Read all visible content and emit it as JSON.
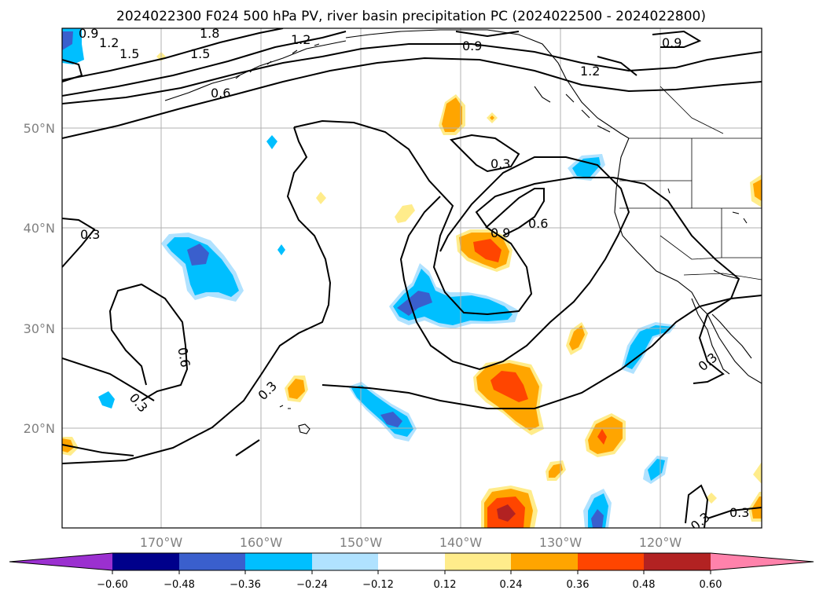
{
  "title": "2024022300 F024 500 hPa PV, river basin precipitation PC (2024022500 - 2024022800)",
  "lon_labels": [
    "170°W",
    "160°W",
    "150°W",
    "140°W",
    "130°W",
    "120°W"
  ],
  "lat_labels": [
    "50°N",
    "40°N",
    "30°N",
    "20°N"
  ],
  "contour_levels": [
    "0.3",
    "0.6",
    "0.9",
    "1.2",
    "1.5",
    "1.8"
  ],
  "colorbar": {
    "tick_labels": [
      "−0.60",
      "−0.48",
      "−0.36",
      "−0.24",
      "−0.12",
      "0.12",
      "0.24",
      "0.36",
      "0.48",
      "0.60"
    ],
    "colors": [
      "#9b30d0",
      "#00008b",
      "#3a5fcd",
      "#00bfff",
      "#b0e2ff",
      "#ffffff",
      "#ffec8b",
      "#ffa500",
      "#ff4500",
      "#b22222",
      "#ff82ab"
    ]
  },
  "contour_labels": [
    {
      "text": "0.9"
    },
    {
      "text": "1.2"
    },
    {
      "text": "1.5"
    },
    {
      "text": "1.8"
    },
    {
      "text": "1.5"
    },
    {
      "text": "1.2"
    },
    {
      "text": "0.6"
    },
    {
      "text": "0.9"
    },
    {
      "text": "1.2"
    },
    {
      "text": "0.9"
    },
    {
      "text": "0.3"
    },
    {
      "text": "0.9"
    },
    {
      "text": "0.6"
    },
    {
      "text": "0.3"
    },
    {
      "text": "0.6"
    },
    {
      "text": "0.3"
    },
    {
      "text": "0.3"
    },
    {
      "text": "0.3"
    },
    {
      "text": "0.3"
    },
    {
      "text": "0.3"
    }
  ]
}
